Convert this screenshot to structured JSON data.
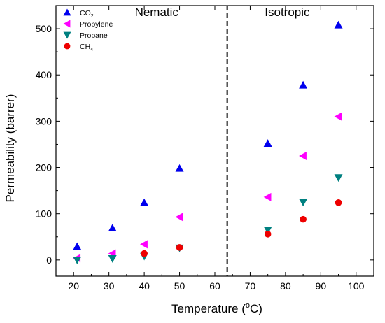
{
  "chart_data": {
    "type": "scatter",
    "xlabel": "Temperature (",
    "xlabel_unit": "o",
    "xlabel_suffix": "C)",
    "ylabel": "Permeability (barrer)",
    "xlim": [
      15,
      105
    ],
    "ylim": [
      -35,
      550
    ],
    "x_ticks": [
      20,
      30,
      40,
      50,
      60,
      70,
      80,
      90,
      100
    ],
    "y_ticks": [
      0,
      100,
      200,
      300,
      400,
      500
    ],
    "grid": false,
    "legend_position": "top-left",
    "divider_x": 63.5,
    "regions": [
      {
        "label": "Nematic",
        "x": 43.5,
        "y": 527
      },
      {
        "label": "Isotropic",
        "x": 80.5,
        "y": 527
      }
    ],
    "series": [
      {
        "name": "CO",
        "name_sub": "2",
        "marker": "triangle-up",
        "color": "#0000ee",
        "x": [
          21,
          31,
          40,
          50,
          75,
          85,
          95
        ],
        "y": [
          29,
          69,
          124,
          198,
          252,
          378,
          508
        ]
      },
      {
        "name": "Propylene",
        "name_sub": "",
        "marker": "triangle-left",
        "color": "#ff00ff",
        "x": [
          21,
          31,
          40,
          50,
          75,
          85,
          95
        ],
        "y": [
          4,
          14,
          34,
          93,
          136,
          225,
          310
        ]
      },
      {
        "name": "Propane",
        "name_sub": "",
        "marker": "triangle-down",
        "color": "#008080",
        "x": [
          21,
          31,
          40,
          50,
          75,
          85,
          95
        ],
        "y": [
          0,
          3,
          8,
          26,
          65,
          125,
          178
        ]
      },
      {
        "name": "CH",
        "name_sub": "4",
        "marker": "circle",
        "color": "#ee0000",
        "x": [
          40,
          50,
          75,
          85,
          95
        ],
        "y": [
          14,
          27,
          56,
          88,
          124
        ]
      }
    ]
  }
}
